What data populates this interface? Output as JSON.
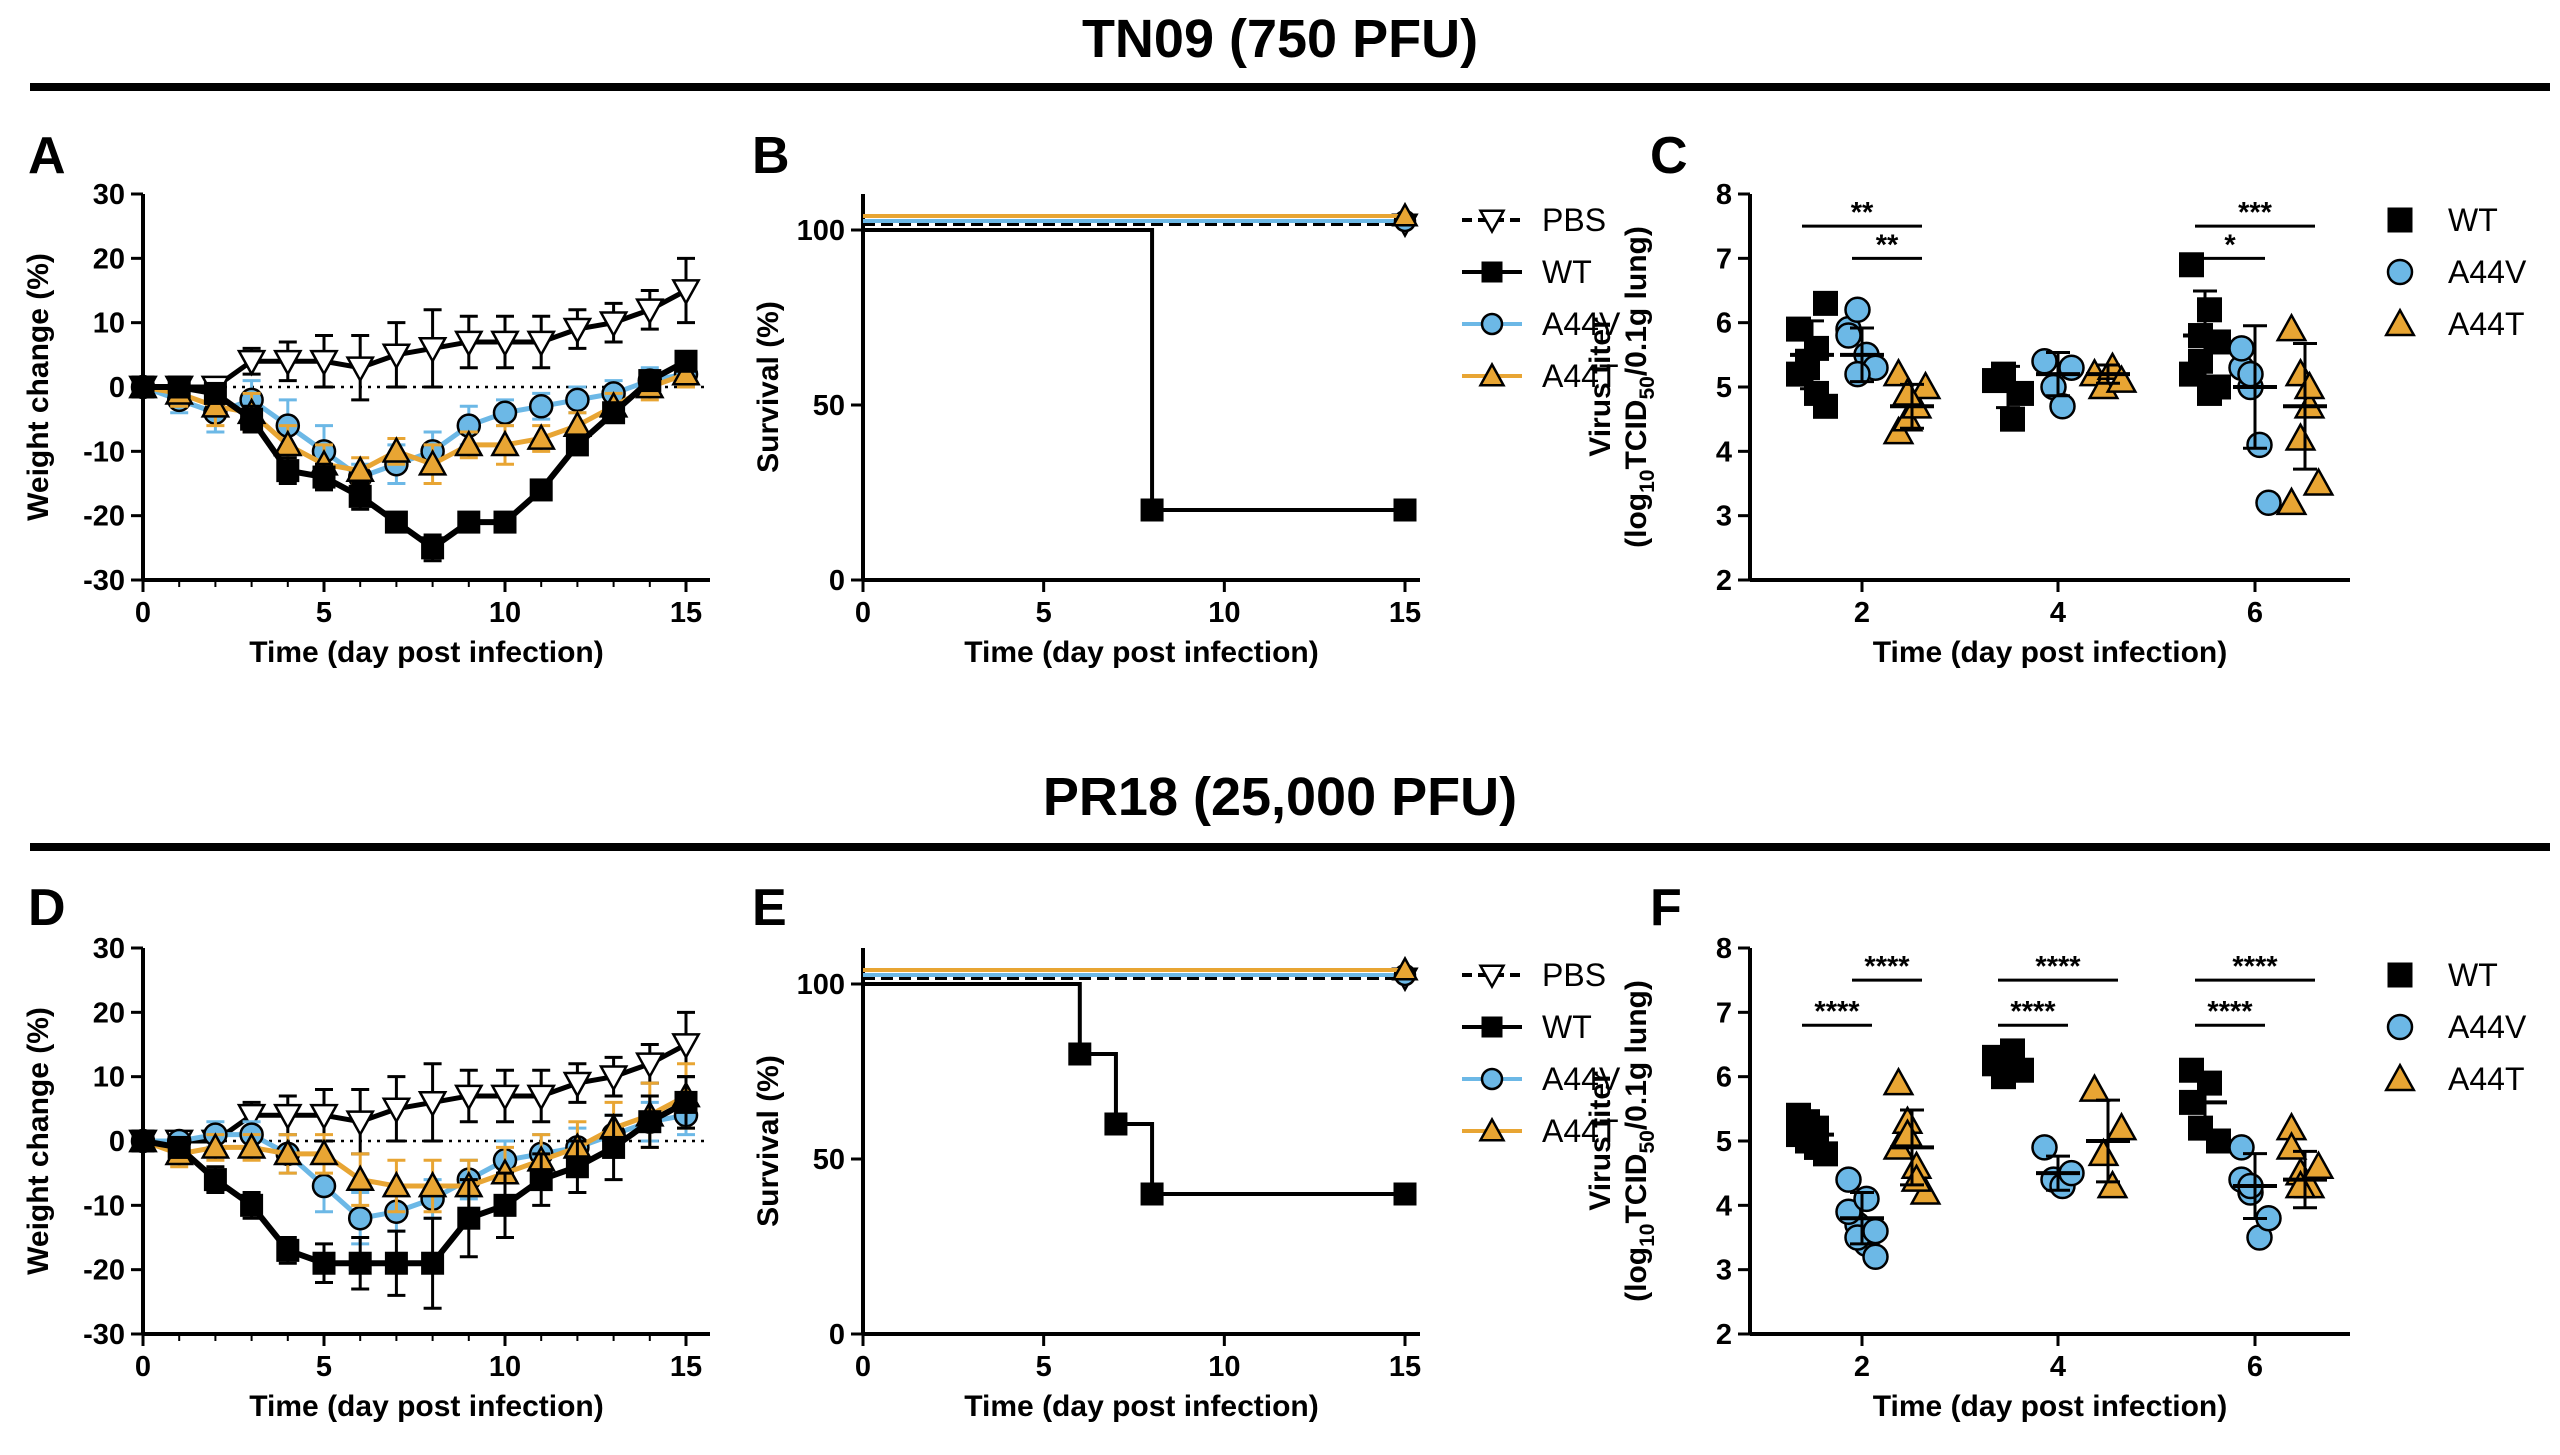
{
  "figure": {
    "sections": [
      {
        "title": "TN09 (750 PFU)"
      },
      {
        "title": "PR18 (25,000 PFU)"
      }
    ],
    "panel_letters": [
      "A",
      "B",
      "C",
      "D",
      "E",
      "F"
    ]
  },
  "colors": {
    "PBS": "#ffffff",
    "WT": "#000000",
    "A44V": "#6cb8e6",
    "A44T": "#e8a533"
  },
  "chart_data": [
    {
      "id": "A",
      "type": "line",
      "title": "",
      "xlabel": "Time (day post infection)",
      "ylabel": "Weight change (%)",
      "xlim": [
        0,
        16
      ],
      "ylim": [
        -30,
        30
      ],
      "xticks": [
        0,
        5,
        10,
        15
      ],
      "yticks": [
        -30,
        -20,
        -10,
        0,
        10,
        20,
        30
      ],
      "tick_labels_x": [
        "0",
        "5",
        "10",
        "15"
      ],
      "tick_labels_y": [
        "-30",
        "-20",
        "-10",
        "0",
        "10",
        "20",
        "30"
      ],
      "zero_line": true,
      "series": [
        {
          "name": "PBS",
          "x": [
            0,
            1,
            2,
            3,
            4,
            5,
            6,
            7,
            8,
            9,
            10,
            11,
            12,
            13,
            14,
            15
          ],
          "values": [
            0,
            0,
            0,
            4,
            4,
            4,
            3,
            5,
            6,
            7,
            7,
            7,
            9,
            10,
            12,
            15
          ],
          "errors": [
            1,
            1,
            1,
            2,
            3,
            4,
            5,
            5,
            6,
            4,
            4,
            4,
            3,
            3,
            3,
            5
          ]
        },
        {
          "name": "A44V",
          "x": [
            0,
            1,
            2,
            3,
            4,
            5,
            6,
            7,
            8,
            9,
            10,
            11,
            12,
            13,
            14,
            15
          ],
          "values": [
            0,
            -2,
            -4,
            -2,
            -6,
            -10,
            -14,
            -12,
            -10,
            -6,
            -4,
            -3,
            -2,
            -1,
            1,
            2
          ],
          "errors": [
            1,
            2,
            3,
            3,
            4,
            4,
            2,
            3,
            3,
            3,
            2,
            2,
            2,
            2,
            2,
            2
          ]
        },
        {
          "name": "A44T",
          "x": [
            0,
            1,
            2,
            3,
            4,
            5,
            6,
            7,
            8,
            9,
            10,
            11,
            12,
            13,
            14,
            15
          ],
          "values": [
            0,
            -1,
            -3,
            -4,
            -9,
            -12,
            -13,
            -10,
            -12,
            -9,
            -9,
            -8,
            -6,
            -3,
            0,
            2
          ],
          "errors": [
            1,
            2,
            3,
            3,
            3,
            3,
            2,
            2,
            3,
            2,
            3,
            2,
            2,
            2,
            2,
            2
          ]
        },
        {
          "name": "WT",
          "x": [
            0,
            1,
            2,
            3,
            4,
            5,
            6,
            7,
            8,
            9,
            10,
            11,
            12,
            13,
            14,
            15
          ],
          "values": [
            0,
            0,
            -1,
            -5,
            -13,
            -14,
            -17,
            -21,
            -25,
            -21,
            -21,
            -16,
            -9,
            -4,
            1,
            4
          ],
          "errors": [
            1,
            1,
            1,
            2,
            2,
            2,
            2,
            1,
            2,
            1,
            1,
            1,
            1,
            1,
            1,
            1
          ]
        }
      ]
    },
    {
      "id": "B",
      "type": "line",
      "title": "",
      "xlabel": "Time (day post infection)",
      "ylabel": "Survival (%)",
      "xlim": [
        0,
        16
      ],
      "ylim": [
        0,
        110
      ],
      "xticks": [
        0,
        5,
        10,
        15
      ],
      "yticks": [
        0,
        50,
        100
      ],
      "tick_labels_x": [
        "0",
        "5",
        "10",
        "15"
      ],
      "tick_labels_y": [
        "0",
        "50",
        "100"
      ],
      "series": [
        {
          "name": "PBS",
          "steps": [
            [
              0,
              100
            ],
            [
              15,
              100
            ]
          ]
        },
        {
          "name": "A44V",
          "steps": [
            [
              0,
              100
            ],
            [
              15,
              100
            ]
          ]
        },
        {
          "name": "A44T",
          "steps": [
            [
              0,
              100
            ],
            [
              15,
              100
            ]
          ]
        },
        {
          "name": "WT",
          "steps": [
            [
              0,
              100
            ],
            [
              8,
              20
            ],
            [
              15,
              20
            ]
          ]
        }
      ],
      "legend": [
        "PBS",
        "WT",
        "A44V",
        "A44T"
      ]
    },
    {
      "id": "C",
      "type": "scatter",
      "title": "",
      "xlabel": "Time (day post infection)",
      "ylabel_line1": "Virus titer",
      "ylabel_line2": "(log10TCID50/0.1g lung)",
      "ylabel_parts": [
        "(log",
        "10",
        "TCID",
        "50",
        "/0.1g lung)"
      ],
      "ylim": [
        2,
        8
      ],
      "yticks": [
        2,
        3,
        4,
        5,
        6,
        7,
        8
      ],
      "tick_labels_y": [
        "2",
        "3",
        "4",
        "5",
        "6",
        "7",
        "8"
      ],
      "categories": [
        "2",
        "4",
        "6"
      ],
      "series": [
        {
          "name": "WT",
          "points": [
            [
              5.2,
              5.4,
              5.6,
              6.3,
              5.9,
              5.3,
              4.9,
              4.7
            ],
            [
              5.1,
              5.2,
              4.5,
              4.9
            ],
            [
              6.9,
              5.8,
              6.2,
              5.0,
              5.2,
              5.4,
              4.9,
              5.7
            ]
          ],
          "means": [
            5.5,
            5.0,
            5.8
          ]
        },
        {
          "name": "A44V",
          "points": [
            [
              5.9,
              6.2,
              5.5,
              5.3,
              5.8,
              5.2
            ],
            [
              5.4,
              5.0,
              4.7,
              5.3
            ],
            [
              5.3,
              5.0,
              4.1,
              3.2,
              5.6,
              5.2
            ]
          ],
          "means": [
            5.5,
            5.2,
            5.0
          ]
        },
        {
          "name": "A44T",
          "points": [
            [
              4.3,
              4.5,
              4.7,
              5.0,
              5.2,
              4.9
            ],
            [
              5.2,
              5.0,
              5.3,
              5.1
            ],
            [
              5.9,
              5.2,
              4.7,
              3.5,
              3.2,
              4.2,
              5.0
            ]
          ],
          "means": [
            4.7,
            5.2,
            4.7
          ]
        }
      ],
      "annotations": [
        {
          "label": "**",
          "from": [
            "2",
            "WT"
          ],
          "to": [
            "2",
            "A44T"
          ],
          "level": 7.5
        },
        {
          "label": "**",
          "from": [
            "2",
            "A44V"
          ],
          "to": [
            "2",
            "A44T"
          ],
          "level": 7.0
        },
        {
          "label": "***",
          "from": [
            "6",
            "WT"
          ],
          "to": [
            "6",
            "A44T"
          ],
          "level": 7.5
        },
        {
          "label": "*",
          "from": [
            "6",
            "WT"
          ],
          "to": [
            "6",
            "A44V"
          ],
          "level": 7.0
        }
      ],
      "legend": [
        "WT",
        "A44V",
        "A44T"
      ]
    },
    {
      "id": "D",
      "type": "line",
      "title": "",
      "xlabel": "Time (day post infection)",
      "ylabel": "Weight change (%)",
      "xlim": [
        0,
        16
      ],
      "ylim": [
        -30,
        30
      ],
      "xticks": [
        0,
        5,
        10,
        15
      ],
      "yticks": [
        -30,
        -20,
        -10,
        0,
        10,
        20,
        30
      ],
      "tick_labels_x": [
        "0",
        "5",
        "10",
        "15"
      ],
      "tick_labels_y": [
        "-30",
        "-20",
        "-10",
        "0",
        "10",
        "20",
        "30"
      ],
      "zero_line": true,
      "series": [
        {
          "name": "PBS",
          "x": [
            0,
            1,
            2,
            3,
            4,
            5,
            6,
            7,
            8,
            9,
            10,
            11,
            12,
            13,
            14,
            15
          ],
          "values": [
            0,
            0,
            0,
            4,
            4,
            4,
            3,
            5,
            6,
            7,
            7,
            7,
            9,
            10,
            12,
            15
          ],
          "errors": [
            1,
            1,
            1,
            2,
            3,
            4,
            5,
            5,
            6,
            4,
            4,
            4,
            3,
            3,
            3,
            5
          ]
        },
        {
          "name": "A44V",
          "x": [
            0,
            1,
            2,
            3,
            4,
            5,
            6,
            7,
            8,
            9,
            10,
            11,
            12,
            13,
            14,
            15
          ],
          "values": [
            0,
            0,
            1,
            1,
            -2,
            -7,
            -12,
            -11,
            -9,
            -6,
            -3,
            -2,
            -1,
            1,
            3,
            4
          ],
          "errors": [
            1,
            1,
            2,
            2,
            3,
            4,
            4,
            3,
            3,
            3,
            3,
            3,
            3,
            3,
            3,
            3
          ]
        },
        {
          "name": "A44T",
          "x": [
            0,
            1,
            2,
            3,
            4,
            5,
            6,
            7,
            8,
            9,
            10,
            11,
            12,
            13,
            14,
            15
          ],
          "values": [
            0,
            -2,
            -1,
            -1,
            -2,
            -2,
            -6,
            -7,
            -7,
            -7,
            -5,
            -3,
            -1,
            2,
            4,
            7
          ],
          "errors": [
            1,
            2,
            2,
            2,
            3,
            3,
            4,
            4,
            4,
            4,
            4,
            4,
            4,
            4,
            5,
            5
          ]
        },
        {
          "name": "WT",
          "x": [
            0,
            1,
            2,
            3,
            4,
            5,
            6,
            7,
            8,
            9,
            10,
            11,
            12,
            13,
            14,
            15
          ],
          "values": [
            0,
            -1,
            -6,
            -10,
            -17,
            -19,
            -19,
            -19,
            -19,
            -12,
            -10,
            -6,
            -4,
            -1,
            3,
            6
          ],
          "errors": [
            1,
            1,
            2,
            2,
            2,
            3,
            4,
            5,
            7,
            6,
            5,
            4,
            4,
            5,
            4,
            4
          ]
        }
      ]
    },
    {
      "id": "E",
      "type": "line",
      "title": "",
      "xlabel": "Time (day post infection)",
      "ylabel": "Survival (%)",
      "xlim": [
        0,
        16
      ],
      "ylim": [
        0,
        110
      ],
      "xticks": [
        0,
        5,
        10,
        15
      ],
      "yticks": [
        0,
        50,
        100
      ],
      "tick_labels_x": [
        "0",
        "5",
        "10",
        "15"
      ],
      "tick_labels_y": [
        "0",
        "50",
        "100"
      ],
      "series": [
        {
          "name": "PBS",
          "steps": [
            [
              0,
              100
            ],
            [
              15,
              100
            ]
          ]
        },
        {
          "name": "A44V",
          "steps": [
            [
              0,
              100
            ],
            [
              15,
              100
            ]
          ]
        },
        {
          "name": "A44T",
          "steps": [
            [
              0,
              100
            ],
            [
              15,
              100
            ]
          ]
        },
        {
          "name": "WT",
          "steps": [
            [
              0,
              100
            ],
            [
              6,
              80
            ],
            [
              7,
              60
            ],
            [
              8,
              40
            ],
            [
              15,
              40
            ]
          ]
        }
      ],
      "legend": [
        "PBS",
        "WT",
        "A44V",
        "A44T"
      ]
    },
    {
      "id": "F",
      "type": "scatter",
      "title": "",
      "xlabel": "Time (day post infection)",
      "ylabel_line1": "Virus titer",
      "ylabel_line2": "(log10TCID50/0.1g lung)",
      "ylabel_parts": [
        "(log",
        "10",
        "TCID",
        "50",
        "/0.1g lung)"
      ],
      "ylim": [
        2,
        8
      ],
      "yticks": [
        2,
        3,
        4,
        5,
        6,
        7,
        8
      ],
      "tick_labels_y": [
        "2",
        "3",
        "4",
        "5",
        "6",
        "7",
        "8"
      ],
      "categories": [
        "2",
        "4",
        "6"
      ],
      "series": [
        {
          "name": "WT",
          "points": [
            [
              5.4,
              5.0,
              5.2,
              4.8,
              5.1,
              5.3,
              4.9
            ],
            [
              6.3,
              6.0,
              6.4,
              6.1,
              6.2
            ],
            [
              6.1,
              5.2,
              5.9,
              5.0,
              5.6
            ]
          ],
          "means": [
            5.1,
            6.2,
            5.6
          ]
        },
        {
          "name": "A44V",
          "points": [
            [
              4.4,
              3.7,
              3.4,
              3.2,
              3.9,
              3.5,
              4.1,
              3.6
            ],
            [
              4.9,
              4.4,
              4.3,
              4.5
            ],
            [
              4.9,
              4.2,
              3.5,
              3.8,
              4.4,
              4.3
            ]
          ],
          "means": [
            3.8,
            4.5,
            4.3
          ]
        },
        {
          "name": "A44T",
          "points": [
            [
              5.9,
              5.3,
              4.6,
              4.2,
              4.9,
              5.1,
              4.4
            ],
            [
              5.8,
              4.8,
              4.3,
              5.2
            ],
            [
              5.2,
              4.5,
              4.3,
              4.6,
              4.9,
              4.3
            ]
          ],
          "means": [
            4.9,
            5.0,
            4.4
          ]
        }
      ],
      "annotations": [
        {
          "label": "****",
          "from": [
            "2",
            "WT"
          ],
          "to": [
            "2",
            "A44V"
          ],
          "level": 6.8
        },
        {
          "label": "****",
          "from": [
            "2",
            "A44V"
          ],
          "to": [
            "2",
            "A44T"
          ],
          "level": 7.5
        },
        {
          "label": "****",
          "from": [
            "4",
            "WT"
          ],
          "to": [
            "4",
            "A44V"
          ],
          "level": 6.8
        },
        {
          "label": "****",
          "from": [
            "4",
            "WT"
          ],
          "to": [
            "4",
            "A44T"
          ],
          "level": 7.5
        },
        {
          "label": "****",
          "from": [
            "6",
            "WT"
          ],
          "to": [
            "6",
            "A44V"
          ],
          "level": 6.8
        },
        {
          "label": "****",
          "from": [
            "6",
            "WT"
          ],
          "to": [
            "6",
            "A44T"
          ],
          "level": 7.5
        }
      ],
      "legend": [
        "WT",
        "A44V",
        "A44T"
      ]
    }
  ]
}
